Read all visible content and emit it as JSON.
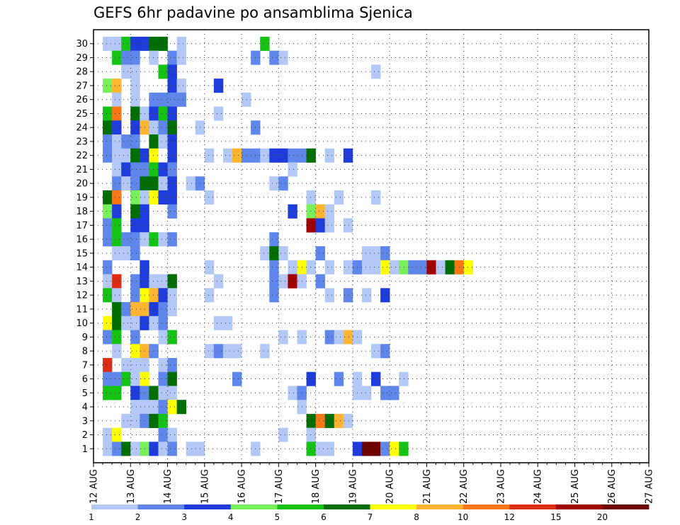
{
  "chart_data": {
    "type": "heatmap",
    "title": "GEFS 6hr padavine po ansamblima Sjenica",
    "xlabel": "",
    "ylabel": "",
    "x_ticks": [
      "12 AUG",
      "13 AUG",
      "14 AUG",
      "15 AUG",
      "16 AUG",
      "17 AUG",
      "18 AUG",
      "19 AUG",
      "20 AUG",
      "21 AUG",
      "22 AUG",
      "23 AUG",
      "24 AUG",
      "25 AUG",
      "26 AUG",
      "27 AUG"
    ],
    "y_ticks": [
      1,
      2,
      3,
      4,
      5,
      6,
      7,
      8,
      9,
      10,
      11,
      12,
      13,
      14,
      15,
      16,
      17,
      18,
      19,
      20,
      21,
      22,
      23,
      24,
      25,
      26,
      27,
      28,
      29,
      30
    ],
    "grid": true,
    "colorbar": {
      "labels": [
        "1",
        "2",
        "3",
        "4",
        "5",
        "6",
        "7",
        "8",
        "10",
        "12",
        "15",
        "20"
      ],
      "colors": [
        "#b4c8f8",
        "#5f87eb",
        "#1e3cdc",
        "#78f05a",
        "#14c314",
        "#006e00",
        "#ffff00",
        "#ffb432",
        "#fa7814",
        "#dc2d14",
        "#a00000",
        "#6e0000"
      ]
    },
    "cell_note": "value = colorbar class index (0..11); x = 6-hour step from 12 AUG 00Z; y = ensemble member",
    "cells": [
      [
        1,
        30,
        0
      ],
      [
        2,
        30,
        0
      ],
      [
        3,
        30,
        4
      ],
      [
        4,
        30,
        2
      ],
      [
        5,
        30,
        2
      ],
      [
        6,
        30,
        5
      ],
      [
        7,
        30,
        5
      ],
      [
        9,
        30,
        0
      ],
      [
        18,
        30,
        4
      ],
      [
        2,
        29,
        4
      ],
      [
        3,
        29,
        1
      ],
      [
        4,
        29,
        1
      ],
      [
        6,
        29,
        0
      ],
      [
        8,
        29,
        1
      ],
      [
        9,
        29,
        0
      ],
      [
        17,
        29,
        1
      ],
      [
        19,
        29,
        1
      ],
      [
        20,
        29,
        0
      ],
      [
        30,
        28,
        0
      ],
      [
        3,
        28,
        0
      ],
      [
        4,
        28,
        0
      ],
      [
        7,
        28,
        4
      ],
      [
        8,
        28,
        2
      ],
      [
        1,
        27,
        3
      ],
      [
        2,
        27,
        7
      ],
      [
        4,
        27,
        0
      ],
      [
        8,
        27,
        2
      ],
      [
        9,
        27,
        0
      ],
      [
        13,
        27,
        2
      ],
      [
        2,
        26,
        0
      ],
      [
        4,
        26,
        0
      ],
      [
        6,
        26,
        1
      ],
      [
        7,
        26,
        1
      ],
      [
        8,
        26,
        1
      ],
      [
        9,
        26,
        1
      ],
      [
        16,
        26,
        0
      ],
      [
        1,
        25,
        4
      ],
      [
        2,
        25,
        8
      ],
      [
        4,
        25,
        5
      ],
      [
        5,
        25,
        0
      ],
      [
        6,
        25,
        2
      ],
      [
        7,
        25,
        4
      ],
      [
        8,
        25,
        2
      ],
      [
        13,
        25,
        0
      ],
      [
        1,
        24,
        5
      ],
      [
        2,
        24,
        2
      ],
      [
        4,
        24,
        2
      ],
      [
        5,
        24,
        7
      ],
      [
        6,
        24,
        0
      ],
      [
        7,
        24,
        1
      ],
      [
        8,
        24,
        5
      ],
      [
        11,
        24,
        0
      ],
      [
        17,
        24,
        1
      ],
      [
        1,
        23,
        1
      ],
      [
        2,
        23,
        0
      ],
      [
        3,
        23,
        1
      ],
      [
        4,
        23,
        1
      ],
      [
        6,
        23,
        5
      ],
      [
        7,
        23,
        0
      ],
      [
        8,
        23,
        2
      ],
      [
        1,
        22,
        1
      ],
      [
        2,
        22,
        0
      ],
      [
        3,
        22,
        0
      ],
      [
        4,
        22,
        5
      ],
      [
        5,
        22,
        2
      ],
      [
        6,
        22,
        6
      ],
      [
        8,
        22,
        2
      ],
      [
        12,
        22,
        0
      ],
      [
        14,
        22,
        0
      ],
      [
        15,
        22,
        7
      ],
      [
        16,
        22,
        1
      ],
      [
        17,
        22,
        1
      ],
      [
        18,
        22,
        0
      ],
      [
        19,
        22,
        2
      ],
      [
        20,
        22,
        2
      ],
      [
        21,
        22,
        1
      ],
      [
        22,
        22,
        1
      ],
      [
        23,
        22,
        5
      ],
      [
        25,
        22,
        0
      ],
      [
        27,
        22,
        2
      ],
      [
        2,
        21,
        0
      ],
      [
        3,
        21,
        2
      ],
      [
        4,
        21,
        1
      ],
      [
        5,
        21,
        1
      ],
      [
        6,
        21,
        4
      ],
      [
        7,
        21,
        2
      ],
      [
        8,
        21,
        1
      ],
      [
        21,
        21,
        0
      ],
      [
        2,
        20,
        1
      ],
      [
        3,
        20,
        0
      ],
      [
        4,
        20,
        1
      ],
      [
        5,
        20,
        5
      ],
      [
        6,
        20,
        5
      ],
      [
        7,
        20,
        0
      ],
      [
        8,
        20,
        2
      ],
      [
        10,
        20,
        0
      ],
      [
        11,
        20,
        1
      ],
      [
        19,
        20,
        0
      ],
      [
        20,
        20,
        1
      ],
      [
        1,
        19,
        5
      ],
      [
        2,
        19,
        8
      ],
      [
        4,
        19,
        3
      ],
      [
        5,
        19,
        0
      ],
      [
        6,
        19,
        6
      ],
      [
        7,
        19,
        2
      ],
      [
        8,
        19,
        2
      ],
      [
        12,
        19,
        0
      ],
      [
        23,
        19,
        0
      ],
      [
        26,
        19,
        0
      ],
      [
        30,
        19,
        0
      ],
      [
        1,
        18,
        3
      ],
      [
        2,
        18,
        2
      ],
      [
        4,
        18,
        5
      ],
      [
        5,
        18,
        2
      ],
      [
        8,
        18,
        1
      ],
      [
        21,
        18,
        2
      ],
      [
        23,
        18,
        3
      ],
      [
        24,
        18,
        7
      ],
      [
        25,
        18,
        0
      ],
      [
        1,
        17,
        1
      ],
      [
        2,
        17,
        4
      ],
      [
        4,
        17,
        2
      ],
      [
        5,
        17,
        2
      ],
      [
        23,
        17,
        10
      ],
      [
        24,
        17,
        2
      ],
      [
        25,
        17,
        0
      ],
      [
        27,
        17,
        0
      ],
      [
        1,
        16,
        1
      ],
      [
        2,
        16,
        4
      ],
      [
        3,
        16,
        1
      ],
      [
        4,
        16,
        1
      ],
      [
        5,
        16,
        0
      ],
      [
        6,
        16,
        4
      ],
      [
        7,
        16,
        0
      ],
      [
        8,
        16,
        1
      ],
      [
        19,
        16,
        1
      ],
      [
        2,
        15,
        0
      ],
      [
        3,
        15,
        0
      ],
      [
        4,
        15,
        1
      ],
      [
        18,
        15,
        0
      ],
      [
        19,
        15,
        5
      ],
      [
        20,
        15,
        0
      ],
      [
        24,
        15,
        1
      ],
      [
        29,
        15,
        0
      ],
      [
        30,
        15,
        0
      ],
      [
        31,
        15,
        1
      ],
      [
        1,
        14,
        1
      ],
      [
        5,
        14,
        2
      ],
      [
        12,
        14,
        0
      ],
      [
        19,
        14,
        1
      ],
      [
        21,
        14,
        0
      ],
      [
        22,
        14,
        6
      ],
      [
        23,
        14,
        0
      ],
      [
        25,
        14,
        0
      ],
      [
        27,
        14,
        0
      ],
      [
        28,
        14,
        1
      ],
      [
        29,
        14,
        0
      ],
      [
        30,
        14,
        0
      ],
      [
        31,
        14,
        6
      ],
      [
        32,
        14,
        0
      ],
      [
        33,
        14,
        3
      ],
      [
        34,
        14,
        1
      ],
      [
        35,
        14,
        1
      ],
      [
        36,
        14,
        10
      ],
      [
        37,
        14,
        0
      ],
      [
        38,
        14,
        5
      ],
      [
        39,
        14,
        8
      ],
      [
        40,
        14,
        6
      ],
      [
        1,
        13,
        0
      ],
      [
        2,
        13,
        9
      ],
      [
        4,
        13,
        1
      ],
      [
        5,
        13,
        2
      ],
      [
        6,
        13,
        0
      ],
      [
        7,
        13,
        0
      ],
      [
        8,
        13,
        5
      ],
      [
        13,
        13,
        0
      ],
      [
        19,
        13,
        1
      ],
      [
        20,
        13,
        0
      ],
      [
        21,
        13,
        10
      ],
      [
        22,
        13,
        0
      ],
      [
        24,
        13,
        1
      ],
      [
        1,
        12,
        4
      ],
      [
        2,
        12,
        0
      ],
      [
        4,
        12,
        1
      ],
      [
        5,
        12,
        6
      ],
      [
        6,
        12,
        7
      ],
      [
        7,
        12,
        2
      ],
      [
        8,
        12,
        0
      ],
      [
        12,
        12,
        0
      ],
      [
        19,
        12,
        1
      ],
      [
        25,
        12,
        0
      ],
      [
        27,
        12,
        1
      ],
      [
        29,
        12,
        0
      ],
      [
        31,
        12,
        2
      ],
      [
        2,
        11,
        5
      ],
      [
        3,
        11,
        1
      ],
      [
        4,
        11,
        7
      ],
      [
        5,
        11,
        7
      ],
      [
        6,
        11,
        2
      ],
      [
        7,
        11,
        1
      ],
      [
        8,
        11,
        0
      ],
      [
        1,
        10,
        6
      ],
      [
        2,
        10,
        5
      ],
      [
        3,
        10,
        0
      ],
      [
        4,
        10,
        0
      ],
      [
        5,
        10,
        2
      ],
      [
        6,
        10,
        0
      ],
      [
        7,
        10,
        1
      ],
      [
        13,
        10,
        0
      ],
      [
        14,
        10,
        0
      ],
      [
        1,
        9,
        1
      ],
      [
        2,
        9,
        4
      ],
      [
        4,
        9,
        1
      ],
      [
        7,
        9,
        0
      ],
      [
        8,
        9,
        4
      ],
      [
        20,
        9,
        0
      ],
      [
        22,
        9,
        0
      ],
      [
        25,
        9,
        1
      ],
      [
        26,
        9,
        0
      ],
      [
        27,
        9,
        7
      ],
      [
        28,
        9,
        0
      ],
      [
        2,
        8,
        0
      ],
      [
        4,
        8,
        6
      ],
      [
        5,
        8,
        7
      ],
      [
        6,
        8,
        1
      ],
      [
        12,
        8,
        0
      ],
      [
        13,
        8,
        1
      ],
      [
        14,
        8,
        0
      ],
      [
        15,
        8,
        0
      ],
      [
        18,
        8,
        0
      ],
      [
        30,
        8,
        0
      ],
      [
        31,
        8,
        1
      ],
      [
        1,
        7,
        9
      ],
      [
        3,
        7,
        0
      ],
      [
        4,
        7,
        0
      ],
      [
        5,
        7,
        0
      ],
      [
        7,
        7,
        0
      ],
      [
        8,
        7,
        1
      ],
      [
        1,
        6,
        1
      ],
      [
        2,
        6,
        1
      ],
      [
        3,
        6,
        4
      ],
      [
        4,
        6,
        0
      ],
      [
        5,
        6,
        6
      ],
      [
        7,
        6,
        1
      ],
      [
        8,
        6,
        5
      ],
      [
        15,
        6,
        1
      ],
      [
        23,
        6,
        2
      ],
      [
        26,
        6,
        1
      ],
      [
        28,
        6,
        0
      ],
      [
        30,
        6,
        2
      ],
      [
        33,
        6,
        0
      ],
      [
        1,
        5,
        4
      ],
      [
        2,
        5,
        4
      ],
      [
        4,
        5,
        2
      ],
      [
        5,
        5,
        1
      ],
      [
        6,
        5,
        5
      ],
      [
        7,
        5,
        0
      ],
      [
        8,
        5,
        0
      ],
      [
        21,
        5,
        0
      ],
      [
        22,
        5,
        1
      ],
      [
        28,
        5,
        0
      ],
      [
        29,
        5,
        0
      ],
      [
        31,
        5,
        1
      ],
      [
        32,
        5,
        1
      ],
      [
        4,
        4,
        0
      ],
      [
        5,
        4,
        0
      ],
      [
        6,
        4,
        0
      ],
      [
        7,
        4,
        1
      ],
      [
        8,
        4,
        6
      ],
      [
        9,
        4,
        5
      ],
      [
        22,
        4,
        0
      ],
      [
        3,
        3,
        0
      ],
      [
        4,
        3,
        0
      ],
      [
        5,
        3,
        1
      ],
      [
        6,
        3,
        5
      ],
      [
        7,
        3,
        4
      ],
      [
        23,
        3,
        5
      ],
      [
        24,
        3,
        8
      ],
      [
        25,
        3,
        5
      ],
      [
        26,
        3,
        7
      ],
      [
        27,
        3,
        0
      ],
      [
        1,
        2,
        0
      ],
      [
        2,
        2,
        6
      ],
      [
        7,
        2,
        1
      ],
      [
        8,
        2,
        0
      ],
      [
        20,
        2,
        0
      ],
      [
        23,
        2,
        0
      ],
      [
        1,
        1,
        0
      ],
      [
        2,
        1,
        1
      ],
      [
        3,
        1,
        5
      ],
      [
        4,
        1,
        0
      ],
      [
        5,
        1,
        3
      ],
      [
        6,
        1,
        2
      ],
      [
        7,
        1,
        0
      ],
      [
        8,
        1,
        1
      ],
      [
        10,
        1,
        0
      ],
      [
        11,
        1,
        0
      ],
      [
        17,
        1,
        0
      ],
      [
        23,
        1,
        4
      ],
      [
        24,
        1,
        0
      ],
      [
        25,
        1,
        0
      ],
      [
        28,
        1,
        2
      ],
      [
        29,
        1,
        11
      ],
      [
        30,
        1,
        11
      ],
      [
        31,
        1,
        1
      ],
      [
        32,
        1,
        6
      ],
      [
        33,
        1,
        4
      ]
    ]
  }
}
